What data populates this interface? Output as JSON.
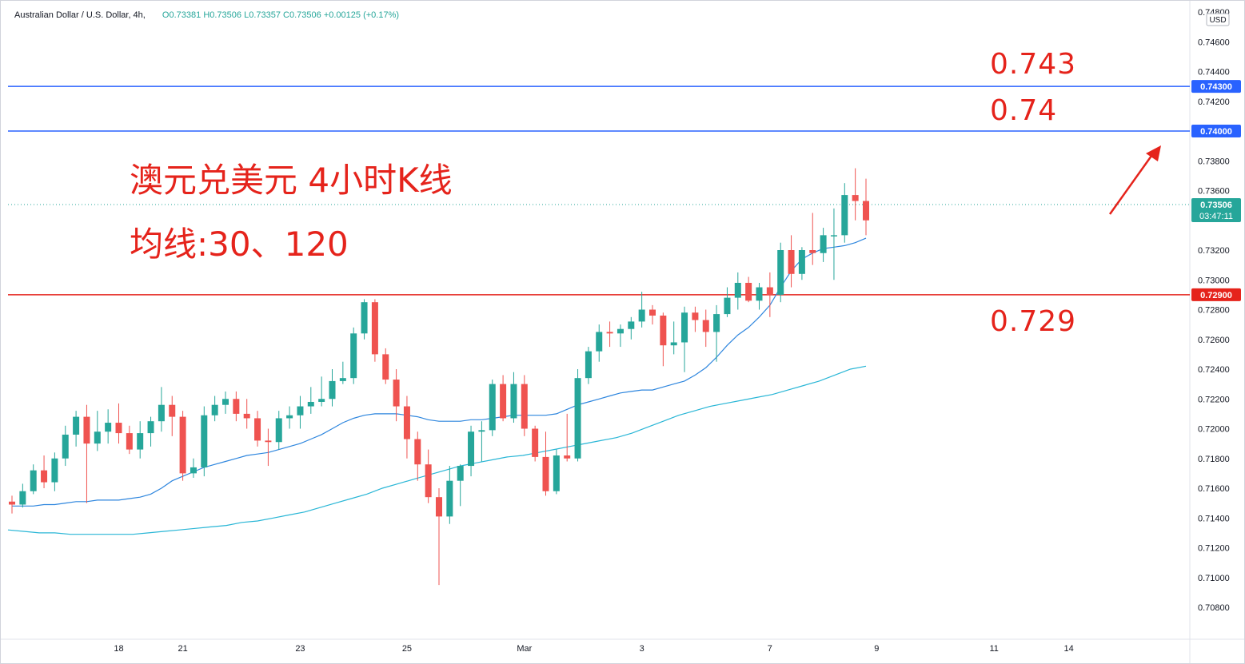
{
  "legend": {
    "symbol": "Australian Dollar / U.S. Dollar, 4h,",
    "open": "O0.73381",
    "high": "H0.73506",
    "low": "L0.73357",
    "close": "C0.73506",
    "change": "+0.00125 (+0.17%)"
  },
  "annotations": {
    "title": "澳元兑美元 4小时K线",
    "ma": "均线:30、120",
    "level_743": "0.743",
    "level_740": "0.74",
    "level_729": "0.729"
  },
  "colors": {
    "up": "#26a69a",
    "down": "#ef5350",
    "ma30": "#2e86de",
    "ma120": "#29b6d6",
    "hline_blue": "#2962ff",
    "hline_red": "#e5231b",
    "annotation": "#e5231b"
  },
  "chart_data": {
    "type": "candlestick",
    "currency_label": "USD",
    "ylim": [
      0.7068,
      0.748
    ],
    "y_ticks": [
      "0.74800",
      "0.74600",
      "0.74400",
      "0.74200",
      "0.73800",
      "0.73600",
      "0.73200",
      "0.73000",
      "0.72800",
      "0.72600",
      "0.72400",
      "0.72200",
      "0.72000",
      "0.71800",
      "0.71600",
      "0.71400",
      "0.71200",
      "0.71000",
      "0.70800"
    ],
    "x_ticks": [
      {
        "label": "18",
        "index": 10
      },
      {
        "label": "21",
        "index": 16
      },
      {
        "label": "23",
        "index": 27
      },
      {
        "label": "25",
        "index": 37
      },
      {
        "label": "Mar",
        "index": 48
      },
      {
        "label": "3",
        "index": 59
      },
      {
        "label": "7",
        "index": 71
      },
      {
        "label": "9",
        "index": 81
      },
      {
        "label": "11",
        "index": 92
      },
      {
        "label": "14",
        "index": 99
      }
    ],
    "horizontal_lines": [
      {
        "value": 0.743,
        "label": "0.74300",
        "color": "blue"
      },
      {
        "value": 0.74,
        "label": "0.74000",
        "color": "blue"
      },
      {
        "value": 0.729,
        "label": "0.72900",
        "color": "red"
      }
    ],
    "last_price": {
      "value": 0.73506,
      "label": "0.73506",
      "countdown": "03:47:11"
    },
    "candles": [
      {
        "o": 0.7151,
        "h": 0.7155,
        "l": 0.7143,
        "c": 0.7149
      },
      {
        "o": 0.7149,
        "h": 0.7163,
        "l": 0.7147,
        "c": 0.7158
      },
      {
        "o": 0.7158,
        "h": 0.7176,
        "l": 0.7156,
        "c": 0.7172
      },
      {
        "o": 0.7172,
        "h": 0.7182,
        "l": 0.716,
        "c": 0.7164
      },
      {
        "o": 0.7164,
        "h": 0.7184,
        "l": 0.7158,
        "c": 0.718
      },
      {
        "o": 0.718,
        "h": 0.7202,
        "l": 0.7175,
        "c": 0.7196
      },
      {
        "o": 0.7196,
        "h": 0.7212,
        "l": 0.7188,
        "c": 0.7208
      },
      {
        "o": 0.7208,
        "h": 0.7216,
        "l": 0.715,
        "c": 0.719
      },
      {
        "o": 0.719,
        "h": 0.7212,
        "l": 0.7185,
        "c": 0.7198
      },
      {
        "o": 0.7198,
        "h": 0.7213,
        "l": 0.719,
        "c": 0.7204
      },
      {
        "o": 0.7204,
        "h": 0.7217,
        "l": 0.719,
        "c": 0.7197
      },
      {
        "o": 0.7197,
        "h": 0.7202,
        "l": 0.7183,
        "c": 0.7186
      },
      {
        "o": 0.7186,
        "h": 0.7205,
        "l": 0.718,
        "c": 0.7197
      },
      {
        "o": 0.7197,
        "h": 0.7208,
        "l": 0.7188,
        "c": 0.7205
      },
      {
        "o": 0.7205,
        "h": 0.7228,
        "l": 0.7198,
        "c": 0.7216
      },
      {
        "o": 0.7216,
        "h": 0.7222,
        "l": 0.7195,
        "c": 0.7208
      },
      {
        "o": 0.7208,
        "h": 0.7212,
        "l": 0.7165,
        "c": 0.717
      },
      {
        "o": 0.717,
        "h": 0.718,
        "l": 0.7167,
        "c": 0.7174
      },
      {
        "o": 0.7174,
        "h": 0.7215,
        "l": 0.7168,
        "c": 0.7209
      },
      {
        "o": 0.7209,
        "h": 0.7222,
        "l": 0.7205,
        "c": 0.7216
      },
      {
        "o": 0.7216,
        "h": 0.7225,
        "l": 0.721,
        "c": 0.722
      },
      {
        "o": 0.722,
        "h": 0.7225,
        "l": 0.7205,
        "c": 0.721
      },
      {
        "o": 0.721,
        "h": 0.722,
        "l": 0.72,
        "c": 0.7207
      },
      {
        "o": 0.7207,
        "h": 0.7212,
        "l": 0.7188,
        "c": 0.7192
      },
      {
        "o": 0.7192,
        "h": 0.72,
        "l": 0.7175,
        "c": 0.7191
      },
      {
        "o": 0.7191,
        "h": 0.7212,
        "l": 0.7186,
        "c": 0.7207
      },
      {
        "o": 0.7207,
        "h": 0.7215,
        "l": 0.72,
        "c": 0.7209
      },
      {
        "o": 0.7209,
        "h": 0.7222,
        "l": 0.72,
        "c": 0.7215
      },
      {
        "o": 0.7215,
        "h": 0.7228,
        "l": 0.721,
        "c": 0.7218
      },
      {
        "o": 0.7218,
        "h": 0.7235,
        "l": 0.7215,
        "c": 0.722
      },
      {
        "o": 0.722,
        "h": 0.724,
        "l": 0.7215,
        "c": 0.7232
      },
      {
        "o": 0.7232,
        "h": 0.7245,
        "l": 0.723,
        "c": 0.7234
      },
      {
        "o": 0.7234,
        "h": 0.7268,
        "l": 0.723,
        "c": 0.7264
      },
      {
        "o": 0.7264,
        "h": 0.7287,
        "l": 0.726,
        "c": 0.7285
      },
      {
        "o": 0.7285,
        "h": 0.7287,
        "l": 0.7245,
        "c": 0.725
      },
      {
        "o": 0.725,
        "h": 0.7254,
        "l": 0.723,
        "c": 0.7233
      },
      {
        "o": 0.7233,
        "h": 0.724,
        "l": 0.7205,
        "c": 0.7215
      },
      {
        "o": 0.7215,
        "h": 0.7222,
        "l": 0.718,
        "c": 0.7193
      },
      {
        "o": 0.7193,
        "h": 0.7198,
        "l": 0.7165,
        "c": 0.7176
      },
      {
        "o": 0.7176,
        "h": 0.7186,
        "l": 0.715,
        "c": 0.7154
      },
      {
        "o": 0.7154,
        "h": 0.716,
        "l": 0.7095,
        "c": 0.7141
      },
      {
        "o": 0.7141,
        "h": 0.7175,
        "l": 0.7136,
        "c": 0.7165
      },
      {
        "o": 0.7165,
        "h": 0.7176,
        "l": 0.7148,
        "c": 0.7175
      },
      {
        "o": 0.7175,
        "h": 0.7202,
        "l": 0.7168,
        "c": 0.7198
      },
      {
        "o": 0.7198,
        "h": 0.7205,
        "l": 0.7178,
        "c": 0.7199
      },
      {
        "o": 0.7199,
        "h": 0.7233,
        "l": 0.7195,
        "c": 0.723
      },
      {
        "o": 0.723,
        "h": 0.7236,
        "l": 0.7205,
        "c": 0.7207
      },
      {
        "o": 0.7207,
        "h": 0.7238,
        "l": 0.7204,
        "c": 0.723
      },
      {
        "o": 0.723,
        "h": 0.7236,
        "l": 0.7195,
        "c": 0.72
      },
      {
        "o": 0.72,
        "h": 0.7202,
        "l": 0.7178,
        "c": 0.7181
      },
      {
        "o": 0.7181,
        "h": 0.7198,
        "l": 0.7155,
        "c": 0.7158
      },
      {
        "o": 0.7158,
        "h": 0.7186,
        "l": 0.7156,
        "c": 0.7182
      },
      {
        "o": 0.7182,
        "h": 0.721,
        "l": 0.7178,
        "c": 0.718
      },
      {
        "o": 0.718,
        "h": 0.724,
        "l": 0.7178,
        "c": 0.7234
      },
      {
        "o": 0.7234,
        "h": 0.7255,
        "l": 0.723,
        "c": 0.7252
      },
      {
        "o": 0.7252,
        "h": 0.727,
        "l": 0.7245,
        "c": 0.7265
      },
      {
        "o": 0.7265,
        "h": 0.7272,
        "l": 0.7255,
        "c": 0.7264
      },
      {
        "o": 0.7264,
        "h": 0.727,
        "l": 0.7255,
        "c": 0.7267
      },
      {
        "o": 0.7267,
        "h": 0.7275,
        "l": 0.726,
        "c": 0.7272
      },
      {
        "o": 0.7272,
        "h": 0.7292,
        "l": 0.7268,
        "c": 0.728
      },
      {
        "o": 0.728,
        "h": 0.7283,
        "l": 0.727,
        "c": 0.7276
      },
      {
        "o": 0.7276,
        "h": 0.7278,
        "l": 0.7242,
        "c": 0.7256
      },
      {
        "o": 0.7256,
        "h": 0.7272,
        "l": 0.725,
        "c": 0.7258
      },
      {
        "o": 0.7258,
        "h": 0.7282,
        "l": 0.7238,
        "c": 0.7278
      },
      {
        "o": 0.7278,
        "h": 0.7282,
        "l": 0.7265,
        "c": 0.7273
      },
      {
        "o": 0.7273,
        "h": 0.728,
        "l": 0.7255,
        "c": 0.7265
      },
      {
        "o": 0.7265,
        "h": 0.7283,
        "l": 0.7245,
        "c": 0.7277
      },
      {
        "o": 0.7277,
        "h": 0.7295,
        "l": 0.7275,
        "c": 0.7288
      },
      {
        "o": 0.7288,
        "h": 0.7305,
        "l": 0.728,
        "c": 0.7298
      },
      {
        "o": 0.7298,
        "h": 0.7302,
        "l": 0.7285,
        "c": 0.7286
      },
      {
        "o": 0.7286,
        "h": 0.7298,
        "l": 0.728,
        "c": 0.7295
      },
      {
        "o": 0.7295,
        "h": 0.7305,
        "l": 0.7275,
        "c": 0.729
      },
      {
        "o": 0.729,
        "h": 0.7325,
        "l": 0.7285,
        "c": 0.732
      },
      {
        "o": 0.732,
        "h": 0.733,
        "l": 0.7295,
        "c": 0.7304
      },
      {
        "o": 0.7304,
        "h": 0.7322,
        "l": 0.73,
        "c": 0.732
      },
      {
        "o": 0.732,
        "h": 0.7345,
        "l": 0.731,
        "c": 0.7318
      },
      {
        "o": 0.7318,
        "h": 0.7335,
        "l": 0.7312,
        "c": 0.733
      },
      {
        "o": 0.733,
        "h": 0.7348,
        "l": 0.73,
        "c": 0.733
      },
      {
        "o": 0.733,
        "h": 0.7365,
        "l": 0.7325,
        "c": 0.7357
      },
      {
        "o": 0.7357,
        "h": 0.7375,
        "l": 0.734,
        "c": 0.7353
      },
      {
        "o": 0.7353,
        "h": 0.7368,
        "l": 0.733,
        "c": 0.734
      }
    ],
    "ma30": [
      0.7148,
      0.7148,
      0.7148,
      0.7149,
      0.7149,
      0.715,
      0.7151,
      0.7151,
      0.7152,
      0.7152,
      0.7152,
      0.7153,
      0.7154,
      0.7156,
      0.716,
      0.7165,
      0.7168,
      0.7171,
      0.7174,
      0.7176,
      0.7178,
      0.718,
      0.7182,
      0.7183,
      0.7184,
      0.7186,
      0.7188,
      0.719,
      0.7193,
      0.7196,
      0.72,
      0.7204,
      0.7207,
      0.7209,
      0.721,
      0.721,
      0.721,
      0.7209,
      0.7208,
      0.7206,
      0.7205,
      0.7205,
      0.7205,
      0.7206,
      0.7206,
      0.7207,
      0.7208,
      0.7209,
      0.7209,
      0.7209,
      0.7209,
      0.721,
      0.7213,
      0.7216,
      0.7218,
      0.722,
      0.7222,
      0.7224,
      0.7225,
      0.7226,
      0.7226,
      0.7228,
      0.723,
      0.7232,
      0.7236,
      0.7241,
      0.7248,
      0.7256,
      0.7263,
      0.7268,
      0.7275,
      0.7283,
      0.7295,
      0.7306,
      0.7314,
      0.7318,
      0.7321,
      0.7322,
      0.7323,
      0.7325,
      0.7328
    ],
    "ma120": [
      0.7132,
      0.7131,
      0.713,
      0.713,
      0.7129,
      0.7129,
      0.7129,
      0.7129,
      0.7129,
      0.713,
      0.7131,
      0.7132,
      0.7133,
      0.7134,
      0.7135,
      0.7137,
      0.7138,
      0.714,
      0.7142,
      0.7144,
      0.7147,
      0.715,
      0.7153,
      0.7156,
      0.716,
      0.7163,
      0.7166,
      0.7169,
      0.7172,
      0.7175,
      0.7177,
      0.7179,
      0.7181,
      0.7182,
      0.7184,
      0.7186,
      0.7188,
      0.719,
      0.7192,
      0.7194,
      0.7197,
      0.7201,
      0.7205,
      0.7209,
      0.7212,
      0.7215,
      0.7217,
      0.7219,
      0.7221,
      0.7223,
      0.7226,
      0.7229,
      0.7232,
      0.7236,
      0.724,
      0.7242
    ]
  }
}
